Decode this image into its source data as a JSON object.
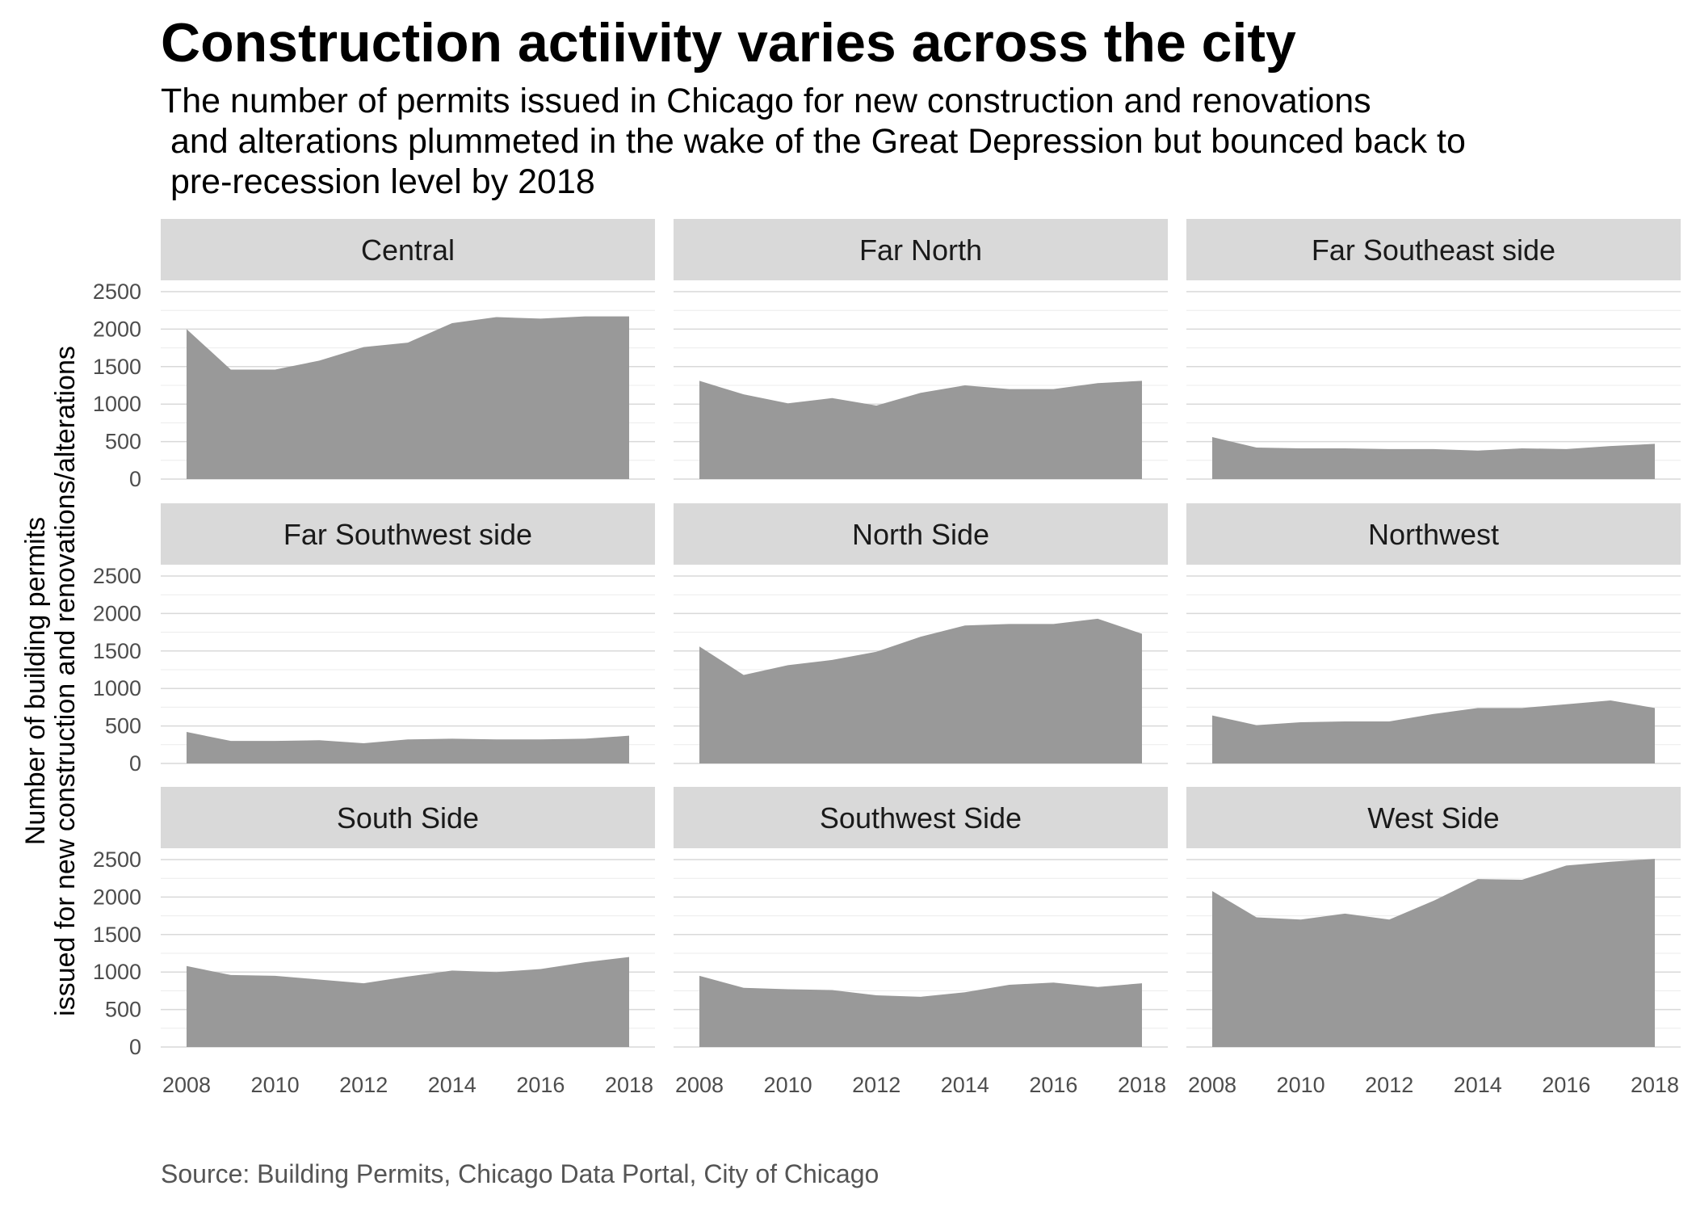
{
  "title": "Construction actiivity varies across the city",
  "subtitle": "The number of permits issued in Chicago for new construction and renovations\n and alterations plummeted in the wake of the Great Depression but bounced back to\n pre-recession level by 2018",
  "caption": "Source: Building Permits, Chicago Data Portal, City of Chicago",
  "chart_data": {
    "type": "area",
    "layout": "facet-wrap-3x3",
    "ylabel_line1": "Number of building permits",
    "ylabel_line2": "issued for new construction and renovations/alterations",
    "xlabel": "",
    "ylim": [
      0,
      2500
    ],
    "xlim": [
      2008,
      2018
    ],
    "x_ticks": [
      "2008",
      "2010",
      "2012",
      "2014",
      "2016",
      "2018"
    ],
    "y_ticks": [
      "0",
      "500",
      "1000",
      "1500",
      "2000",
      "2500"
    ],
    "fill_color": "#999999",
    "strip_color": "#d9d9d9",
    "grid_color": "#d9d9d9",
    "x": [
      2008,
      2009,
      2010,
      2011,
      2012,
      2013,
      2014,
      2015,
      2016,
      2017,
      2018
    ],
    "facets": [
      {
        "name": "Central",
        "values": [
          2000,
          1460,
          1460,
          1580,
          1760,
          1820,
          2080,
          2160,
          2140,
          2170,
          2170
        ]
      },
      {
        "name": "Far North",
        "values": [
          1310,
          1130,
          1010,
          1080,
          980,
          1150,
          1250,
          1200,
          1200,
          1280,
          1310
        ]
      },
      {
        "name": "Far Southeast side",
        "values": [
          560,
          420,
          410,
          410,
          400,
          400,
          380,
          410,
          400,
          440,
          470
        ]
      },
      {
        "name": "Far Southwest side",
        "values": [
          420,
          300,
          300,
          310,
          270,
          320,
          330,
          320,
          320,
          330,
          370
        ]
      },
      {
        "name": "North Side",
        "values": [
          1560,
          1180,
          1310,
          1380,
          1490,
          1690,
          1840,
          1860,
          1860,
          1930,
          1730
        ]
      },
      {
        "name": "Northwest",
        "values": [
          640,
          510,
          550,
          560,
          560,
          660,
          740,
          740,
          790,
          840,
          740
        ]
      },
      {
        "name": "South Side",
        "values": [
          1080,
          960,
          950,
          900,
          850,
          940,
          1020,
          1000,
          1040,
          1130,
          1200
        ]
      },
      {
        "name": "Southwest Side",
        "values": [
          950,
          790,
          770,
          760,
          690,
          670,
          730,
          830,
          860,
          800,
          850
        ]
      },
      {
        "name": "West Side",
        "values": [
          2080,
          1730,
          1700,
          1780,
          1700,
          1950,
          2240,
          2230,
          2420,
          2470,
          2510
        ]
      }
    ]
  }
}
